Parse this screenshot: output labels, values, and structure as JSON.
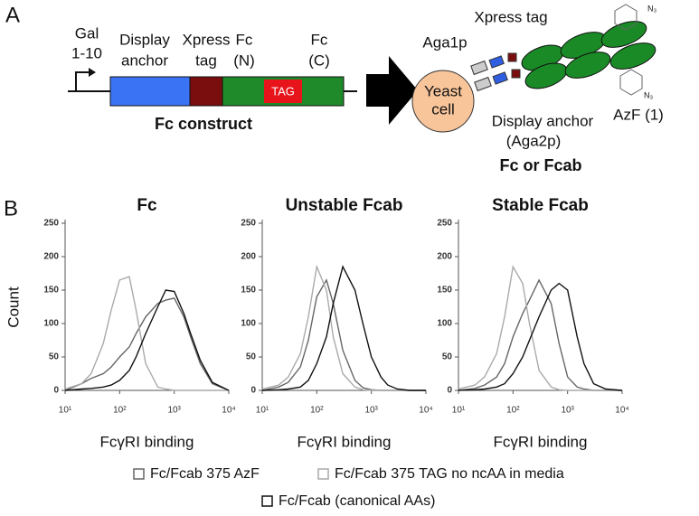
{
  "panel_a": {
    "label": "A",
    "promoter": [
      "Gal",
      "1-10"
    ],
    "display_anchor": [
      "Display",
      "anchor"
    ],
    "xpress_tag": [
      "Xpress",
      "tag"
    ],
    "fc_n": [
      "Fc",
      "(N)"
    ],
    "fc_c": [
      "Fc",
      "(C)"
    ],
    "tag_codon": "TAG",
    "construct_caption": "Fc construct",
    "xpress_tag_right": "Xpress tag",
    "aga1p": "Aga1p",
    "yeast_cell": [
      "Yeast",
      "cell"
    ],
    "display_anchor_right": [
      "Display anchor",
      "(Aga2p)"
    ],
    "azide_labels": [
      "N₃",
      "N₃"
    ],
    "azf": "AzF (1)",
    "product_caption": "Fc or Fcab"
  },
  "panel_b_label": "B",
  "chart_data": [
    {
      "type": "line",
      "title": "Fc",
      "x_label": "FcγRI binding",
      "y_label": "Count",
      "x_scale": "log",
      "xlim": [
        10,
        10000
      ],
      "xticks": [
        {
          "value": 10,
          "label": "10¹"
        },
        {
          "value": 100,
          "label": "10²"
        },
        {
          "value": 1000,
          "label": "10³"
        },
        {
          "value": 10000,
          "label": "10⁴"
        }
      ],
      "ylim": [
        0,
        250
      ],
      "yticks": [
        0,
        50,
        100,
        150,
        200,
        250
      ],
      "x": [
        10,
        20,
        30,
        50,
        70,
        100,
        150,
        200,
        300,
        500,
        700,
        1000,
        1500,
        2000,
        3000,
        5000,
        10000
      ],
      "series": [
        {
          "name": "Fc/Fcab 375 AzF",
          "color": "#666666",
          "values": [
            0,
            10,
            18,
            25,
            35,
            50,
            65,
            85,
            110,
            130,
            135,
            138,
            110,
            80,
            40,
            10,
            0
          ]
        },
        {
          "name": "Fc/Fcab 375 TAG no ncAA in media",
          "color": "#aaaaaa",
          "values": [
            2,
            10,
            25,
            70,
            120,
            165,
            170,
            120,
            40,
            5,
            2,
            0,
            0,
            0,
            0,
            0,
            0
          ]
        },
        {
          "name": "Fc/Fcab (canonical AAs)",
          "color": "#111111",
          "values": [
            0,
            2,
            3,
            5,
            8,
            15,
            30,
            50,
            85,
            125,
            150,
            148,
            115,
            85,
            45,
            12,
            0
          ]
        }
      ]
    },
    {
      "type": "line",
      "title": "Unstable Fcab",
      "x_label": "FcγRI binding",
      "x_scale": "log",
      "xlim": [
        10,
        10000
      ],
      "xticks": [
        {
          "value": 10,
          "label": "10¹"
        },
        {
          "value": 100,
          "label": "10²"
        },
        {
          "value": 1000,
          "label": "10³"
        },
        {
          "value": 10000,
          "label": "10⁴"
        }
      ],
      "ylim": [
        0,
        250
      ],
      "yticks": [
        0,
        50,
        100,
        150,
        200,
        250
      ],
      "x": [
        10,
        20,
        30,
        50,
        70,
        100,
        150,
        200,
        300,
        500,
        700,
        1000,
        1500,
        2000,
        3000,
        5000,
        10000
      ],
      "series": [
        {
          "color": "#666666",
          "values": [
            0,
            5,
            12,
            35,
            75,
            140,
            165,
            130,
            60,
            15,
            4,
            1,
            0,
            0,
            0,
            0,
            0
          ]
        },
        {
          "color": "#aaaaaa",
          "values": [
            2,
            8,
            20,
            55,
            110,
            185,
            150,
            80,
            25,
            5,
            1,
            0,
            0,
            0,
            0,
            0,
            0
          ]
        },
        {
          "color": "#111111",
          "values": [
            0,
            1,
            2,
            5,
            15,
            40,
            80,
            130,
            185,
            150,
            100,
            50,
            20,
            8,
            2,
            0,
            0
          ]
        }
      ]
    },
    {
      "type": "line",
      "title": "Stable Fcab",
      "x_label": "FcγRI binding",
      "x_scale": "log",
      "xlim": [
        10,
        10000
      ],
      "xticks": [
        {
          "value": 10,
          "label": "10¹"
        },
        {
          "value": 100,
          "label": "10²"
        },
        {
          "value": 1000,
          "label": "10³"
        },
        {
          "value": 10000,
          "label": "10⁴"
        }
      ],
      "ylim": [
        0,
        250
      ],
      "yticks": [
        0,
        50,
        100,
        150,
        200,
        250
      ],
      "x": [
        10,
        20,
        30,
        50,
        70,
        100,
        150,
        200,
        300,
        500,
        700,
        1000,
        1500,
        2000,
        3000,
        5000,
        10000
      ],
      "series": [
        {
          "color": "#666666",
          "values": [
            0,
            3,
            8,
            20,
            40,
            80,
            115,
            135,
            165,
            130,
            70,
            20,
            5,
            2,
            0,
            0,
            0
          ]
        },
        {
          "color": "#aaaaaa",
          "values": [
            2,
            8,
            20,
            55,
            110,
            185,
            160,
            100,
            30,
            5,
            1,
            0,
            0,
            0,
            0,
            0,
            0
          ]
        },
        {
          "color": "#111111",
          "values": [
            0,
            1,
            2,
            5,
            10,
            25,
            50,
            75,
            110,
            150,
            160,
            150,
            80,
            40,
            10,
            2,
            0
          ]
        }
      ]
    }
  ]
}
